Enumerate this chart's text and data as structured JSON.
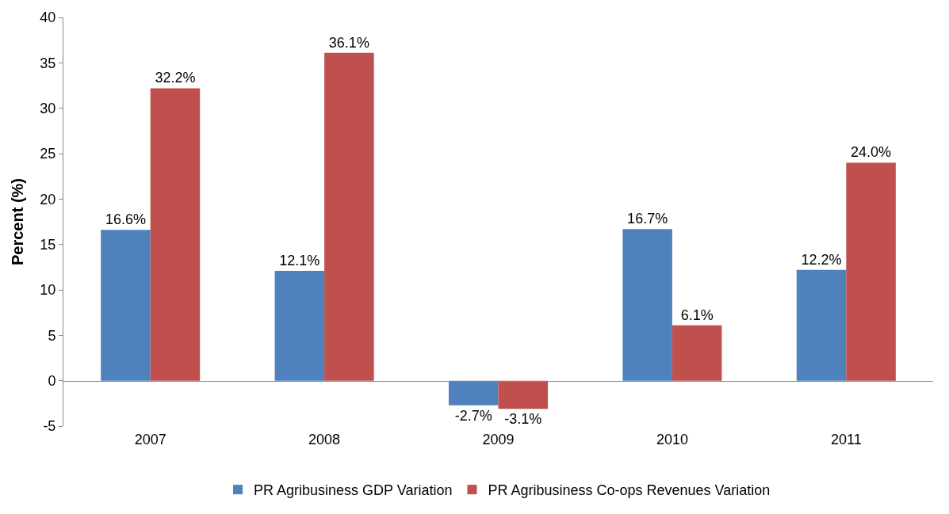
{
  "chart_data": {
    "type": "bar",
    "ylabel": "Percent (%)",
    "categories": [
      "2007",
      "2008",
      "2009",
      "2010",
      "2011"
    ],
    "series": [
      {
        "name": "PR Agribusiness GDP Variation",
        "color": "#4f81bd",
        "values": [
          16.6,
          12.1,
          -2.7,
          16.7,
          12.2
        ],
        "value_labels": [
          "16.6%",
          "12.1%",
          "-2.7%",
          "16.7%",
          "12.2%"
        ]
      },
      {
        "name": "PR Agribusiness Co-ops Revenues Variation",
        "color": "#c0504d",
        "values": [
          32.2,
          36.1,
          -3.1,
          6.1,
          24.0
        ],
        "value_labels": [
          "32.2%",
          "36.1%",
          "-3.1%",
          "6.1%",
          "24.0%"
        ]
      }
    ],
    "ylim": [
      -5,
      40
    ],
    "yticks": [
      -5,
      0,
      5,
      10,
      15,
      20,
      25,
      30,
      35,
      40
    ],
    "legend": "bottom"
  }
}
